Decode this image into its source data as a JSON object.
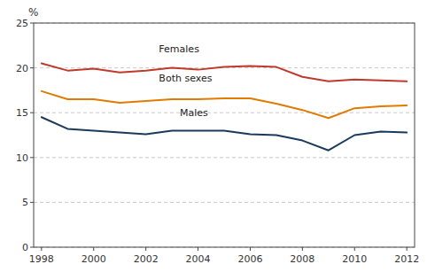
{
  "chart_data": {
    "type": "line",
    "y_label": "%",
    "x": [
      1998,
      1999,
      2000,
      2001,
      2002,
      2003,
      2004,
      2005,
      2006,
      2007,
      2008,
      2009,
      2010,
      2011,
      2012
    ],
    "series": [
      {
        "color": "#c0392b",
        "values": [
          20.5,
          19.7,
          19.9,
          19.5,
          19.7,
          20.0,
          19.8,
          20.1,
          20.2,
          20.1,
          19.0,
          18.5,
          18.7,
          18.6,
          18.5
        ]
      },
      {
        "color": "#e07b00",
        "values": [
          17.4,
          16.5,
          16.5,
          16.1,
          16.3,
          16.5,
          16.5,
          16.6,
          16.6,
          16.0,
          15.3,
          14.4,
          15.5,
          15.7,
          15.8
        ]
      },
      {
        "color": "#1a3a5c",
        "values": [
          14.5,
          13.2,
          13.0,
          12.8,
          12.6,
          13.0,
          13.0,
          13.0,
          12.6,
          12.5,
          11.9,
          10.8,
          12.5,
          12.9,
          12.8
        ]
      }
    ],
    "annotations": [
      {
        "text": "Females",
        "x": 2002.5,
        "y": 21.5
      },
      {
        "text": "Both sexes",
        "x": 2002.5,
        "y": 18.3
      },
      {
        "text": "Males",
        "x": 2003.3,
        "y": 14.4
      }
    ],
    "xlim": [
      1997.7,
      2012.3
    ],
    "xticks": [
      1998,
      2000,
      2002,
      2004,
      2006,
      2008,
      2010,
      2012
    ],
    "ylim": [
      0,
      25
    ],
    "yticks": [
      0,
      5,
      10,
      15,
      20,
      25
    ],
    "grid": true
  }
}
